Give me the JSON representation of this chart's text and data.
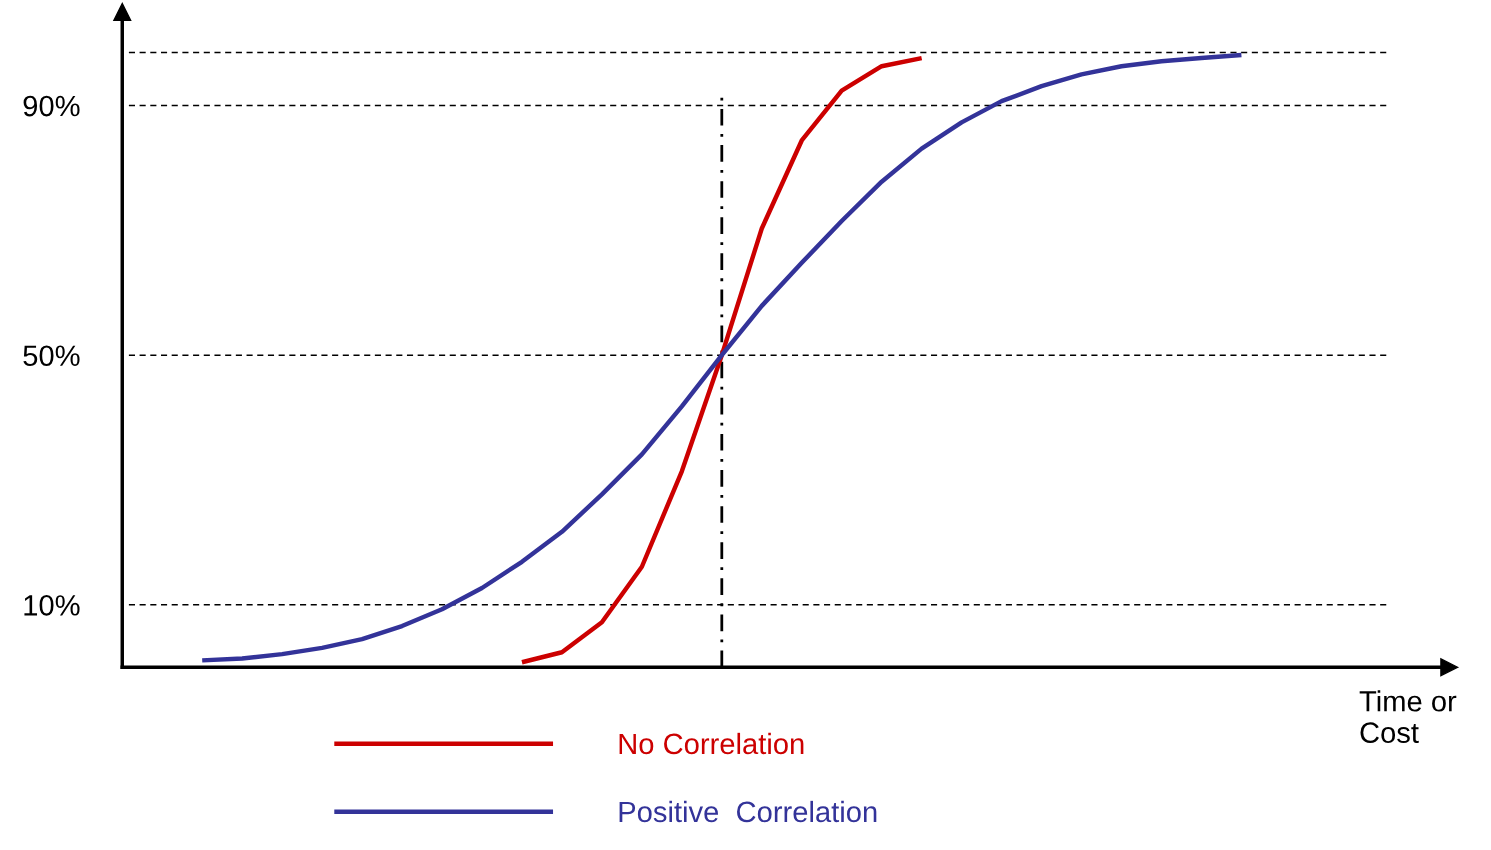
{
  "chart_data": {
    "type": "line",
    "xlabel": "Time or\nCost",
    "categories": [
      null,
      null,
      null,
      null,
      null,
      null,
      null,
      null,
      null,
      null,
      null,
      null,
      null,
      null,
      null,
      null,
      null,
      null,
      null,
      null,
      null,
      null,
      null,
      null,
      null,
      null,
      null,
      null,
      null,
      null,
      null,
      null
    ],
    "ylim": [
      0,
      105
    ],
    "yticks": [
      {
        "value": 10,
        "label": "10%"
      },
      {
        "value": 50,
        "label": "50%"
      },
      {
        "value": 90,
        "label": "90%"
      }
    ],
    "tick_labels": "y",
    "legend": "bottom",
    "line_style": "solid",
    "series": [
      {
        "name": "No Correlation",
        "color": "#cc0000",
        "values": [
          null,
          null,
          null,
          null,
          null,
          null,
          null,
          null,
          0.8,
          2.4,
          7.2,
          16.1,
          31.4,
          50,
          70.3,
          84.4,
          92.4,
          96.3,
          97.6,
          null,
          null,
          null,
          null,
          null,
          null,
          null,
          null,
          null,
          null,
          null,
          null,
          null
        ]
      },
      {
        "name": "Positive  Correlation",
        "color": "#333399",
        "values": [
          1.1,
          1.4,
          2.1,
          3.1,
          4.5,
          6.6,
          9.3,
          12.7,
          16.9,
          21.7,
          27.7,
          34.1,
          41.8,
          50,
          57.9,
          64.8,
          71.5,
          77.8,
          83.1,
          87.3,
          90.7,
          93.1,
          95.0,
          96.3,
          97.1,
          97.6,
          98.1,
          null,
          null,
          null,
          null,
          null
        ]
      }
    ],
    "ref_lines": [
      {
        "axis": "y",
        "value": 10,
        "color": "#000000",
        "line_style": "dashed"
      },
      {
        "axis": "y",
        "value": 50,
        "color": "#000000",
        "line_style": "dashed"
      },
      {
        "axis": "y",
        "value": 90,
        "color": "#000000",
        "line_style": "dashed"
      },
      {
        "axis": "y",
        "value": 98.5,
        "color": "#000000",
        "line_style": "dashed"
      }
    ]
  }
}
